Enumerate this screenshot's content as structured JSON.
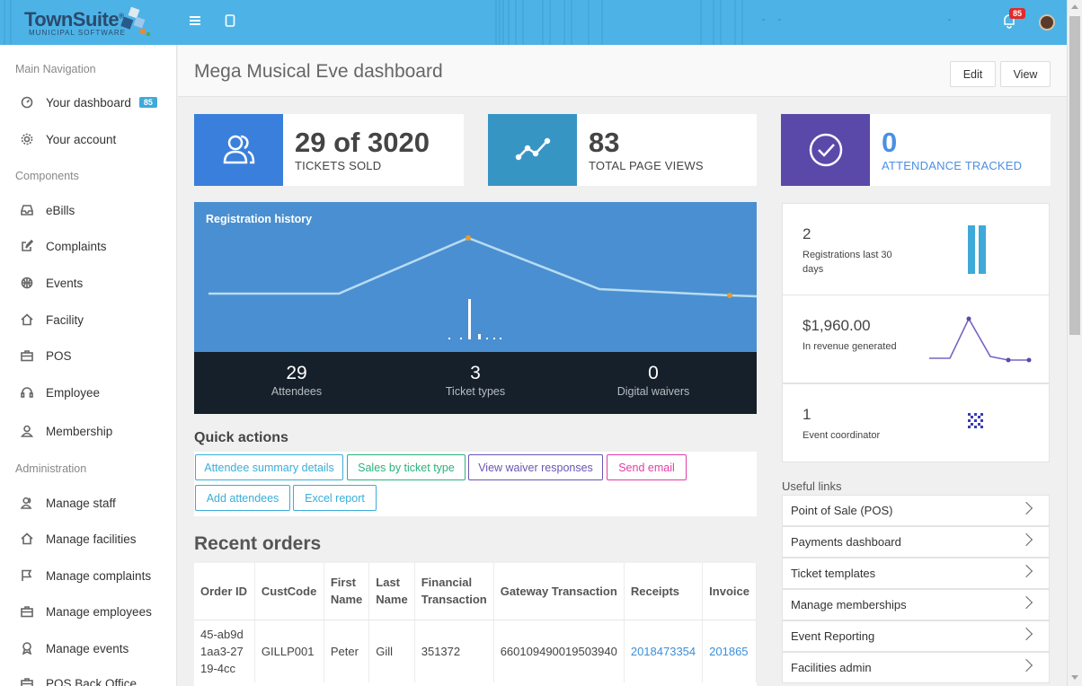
{
  "header": {
    "brand": "TownSuite",
    "brand_mark": "®",
    "brand_sub": "MUNICIPAL SOFTWARE",
    "notifications_count": "85"
  },
  "sidebar": {
    "sections": [
      "Main Navigation",
      "Components",
      "Administration"
    ],
    "main_items": [
      {
        "label": "Your dashboard",
        "badge": "85",
        "icon": "gauge-icon"
      },
      {
        "label": "Your account",
        "icon": "gear-icon"
      }
    ],
    "component_items": [
      {
        "label": "eBills",
        "icon": "inbox-icon"
      },
      {
        "label": "Complaints",
        "icon": "edit-icon"
      },
      {
        "label": "Events",
        "icon": "basketball-icon"
      },
      {
        "label": "Facility",
        "icon": "home-icon"
      },
      {
        "label": "POS",
        "icon": "briefcase-icon"
      },
      {
        "label": "Employee",
        "icon": "headset-icon"
      },
      {
        "label": "Membership",
        "icon": "user-icon"
      }
    ],
    "admin_items": [
      {
        "label": "Manage staff",
        "icon": "users-icon"
      },
      {
        "label": "Manage facilities",
        "icon": "home-icon"
      },
      {
        "label": "Manage complaints",
        "icon": "flag-icon"
      },
      {
        "label": "Manage employees",
        "icon": "briefcase-icon"
      },
      {
        "label": "Manage events",
        "icon": "award-icon"
      },
      {
        "label": "POS Back Office",
        "icon": "briefcase-icon"
      }
    ]
  },
  "page": {
    "title": "Mega Musical Eve dashboard",
    "edit_label": "Edit",
    "view_label": "View"
  },
  "stats": [
    {
      "value": "29 of 3020",
      "label": "TICKETS SOLD",
      "color": "#3a7fdb",
      "icon": "users-icon"
    },
    {
      "value": "83",
      "label": "TOTAL PAGE VIEWS",
      "color": "#3795c4",
      "icon": "trend-icon"
    },
    {
      "value": "0",
      "label": "ATTENDANCE TRACKED",
      "color": "#5a49a9",
      "icon": "check-circle-icon"
    }
  ],
  "registration": {
    "title": "Registration history",
    "attendees": "29",
    "attendees_label": "Attendees",
    "ticket_types": "3",
    "ticket_types_label": "Ticket types",
    "waivers": "0",
    "waivers_label": "Digital waivers"
  },
  "quick_actions": {
    "title": "Quick actions",
    "buttons": [
      {
        "label": "Attendee summary details",
        "color": "#3aaed9"
      },
      {
        "label": "Sales by ticket type",
        "color": "#29b37d"
      },
      {
        "label": "View waiver responses",
        "color": "#6a55b5"
      },
      {
        "label": "Send email",
        "color": "#e13ea5"
      },
      {
        "label": "Add attendees",
        "color": "#3aaed9"
      },
      {
        "label": "Excel report",
        "color": "#3aaed9"
      }
    ]
  },
  "orders": {
    "title": "Recent orders",
    "columns": [
      "Order ID",
      "CustCode",
      "First Name",
      "Last Name",
      "Financial Transaction",
      "Gateway Transaction",
      "Receipts",
      "Invoice"
    ],
    "row": [
      "45-ab9d1aa3-2719-4cc",
      "GILLP001",
      "Peter",
      "Gill",
      "351372",
      "660109490019503940",
      "2018473354",
      "201865"
    ]
  },
  "kpis": [
    {
      "value": "2",
      "label": "Registrations last 30 days"
    },
    {
      "value": "$1,960.00",
      "label": "In revenue generated"
    },
    {
      "value": "1",
      "label": "Event coordinator"
    }
  ],
  "useful_links": {
    "title": "Useful links",
    "items": [
      "Point of Sale (POS)",
      "Payments dashboard",
      "Ticket templates",
      "Manage memberships",
      "Event Reporting",
      "Facilities admin"
    ]
  }
}
